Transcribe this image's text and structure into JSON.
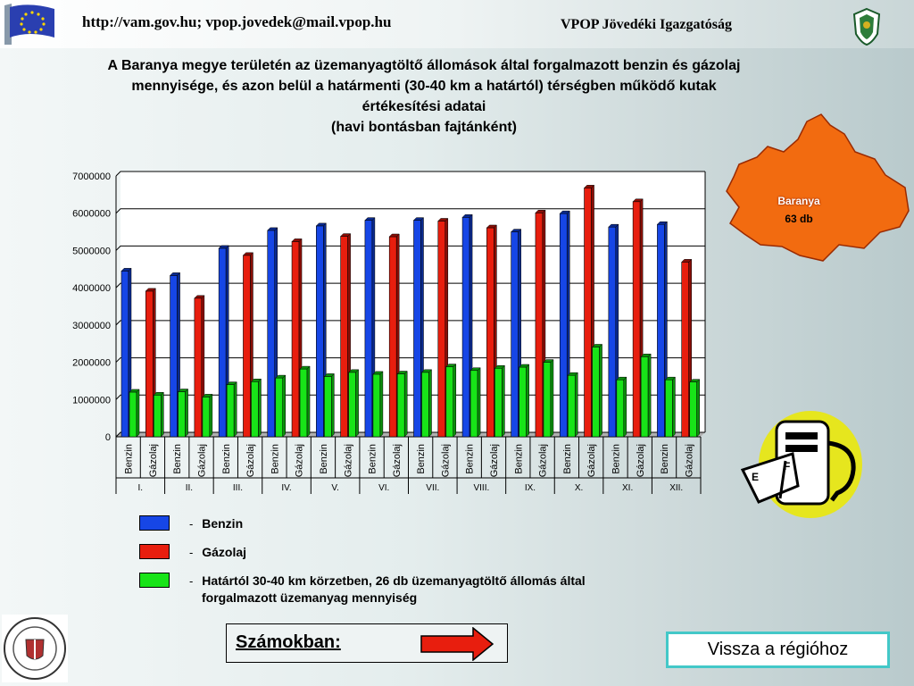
{
  "header": {
    "url_text": "http://vam.gov.hu; vpop.jovedek@mail.vpop.hu",
    "org_text": "VPOP Jövedéki Igazgatóság"
  },
  "title_lines": [
    "A Baranya megye területén az üzemanyagtöltő állomások által forgalmazott benzin és gázolaj",
    "mennyisége, és azon belül a határmenti (30-40 km a határtól) térségben működő kutak",
    "értékesítési adatai",
    "(havi bontásban fajtánként)"
  ],
  "map": {
    "label": "Baranya",
    "count": "63 db",
    "color": "#f26b10"
  },
  "legend": [
    {
      "dash": "-",
      "text": "Benzin",
      "color": "#1646e6"
    },
    {
      "dash": "-",
      "text": "Gázolaj",
      "color": "#e81e0e"
    },
    {
      "dash": "-",
      "text": "Határtól 30-40 km körzetben, 26 db üzemanyagtöltő állomás által",
      "text2": "forgalmazott üzemanyag mennyiség",
      "color": "#18e418"
    }
  ],
  "buttons": {
    "szamokban": "Számokban:",
    "back": "Vissza a régióhoz"
  },
  "chart_data": {
    "type": "bar",
    "title": "",
    "xlabel": "",
    "ylabel": "",
    "ylim": [
      0,
      7000000
    ],
    "yticks": [
      "0",
      "1000000",
      "2000000",
      "3000000",
      "4000000",
      "5000000",
      "6000000",
      "7000000"
    ],
    "grid": true,
    "months": [
      "I.",
      "II.",
      "III.",
      "IV.",
      "V.",
      "VI.",
      "VII.",
      "VIII.",
      "IX.",
      "X.",
      "XI.",
      "XII."
    ],
    "fuel_labels": [
      "Benzin",
      "Gázolaj"
    ],
    "series": [
      {
        "name": "Benzin",
        "fuel": "Benzin",
        "color": "#1646e6",
        "values": [
          4450000,
          4330000,
          5060000,
          5540000,
          5660000,
          5810000,
          5810000,
          5890000,
          5500000,
          5990000,
          5630000,
          5700000
        ]
      },
      {
        "name": "Határtól 30-40 km (Benzin)",
        "fuel": "Benzin",
        "color": "#18e418",
        "values": [
          1200000,
          1210000,
          1400000,
          1580000,
          1620000,
          1680000,
          1730000,
          1780000,
          1870000,
          1650000,
          1530000,
          1530000
        ]
      },
      {
        "name": "Gázolaj",
        "fuel": "Gázolaj",
        "color": "#e81e0e",
        "values": [
          3910000,
          3720000,
          4870000,
          5240000,
          5380000,
          5370000,
          5790000,
          5610000,
          6010000,
          6680000,
          6310000,
          4690000
        ]
      },
      {
        "name": "Határtól 30-40 km (Gázolaj)",
        "fuel": "Gázolaj",
        "color": "#18e418",
        "values": [
          1120000,
          1070000,
          1480000,
          1820000,
          1730000,
          1690000,
          1880000,
          1840000,
          2000000,
          2410000,
          2150000,
          1470000
        ]
      }
    ]
  }
}
